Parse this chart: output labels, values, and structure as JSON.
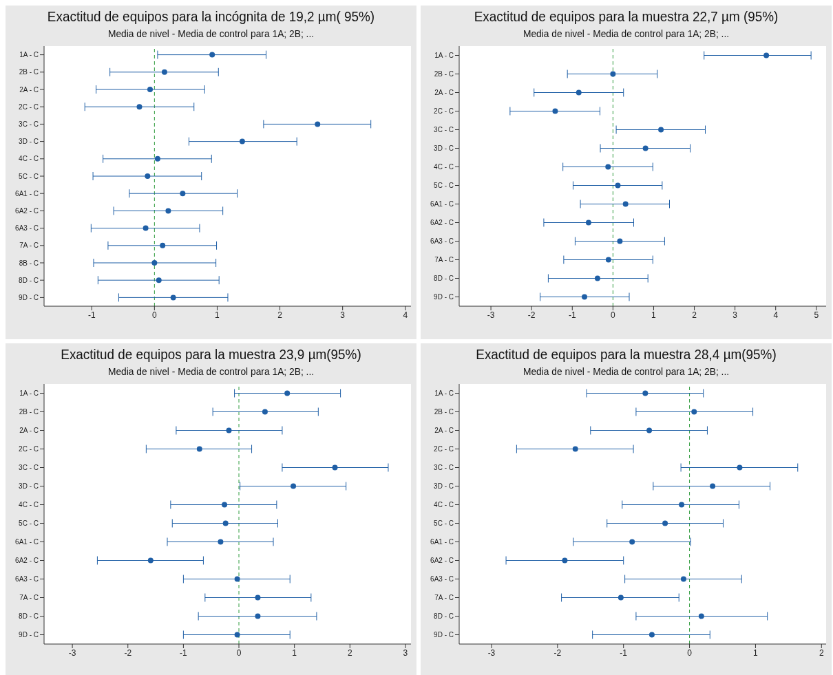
{
  "chart_data": [
    {
      "type": "scatter",
      "orientation": "horizontal",
      "title": "Exactitud de equipos  para la incógnita de 19,2 µm( 95%)",
      "subtitle": "Media de nivel - Media de control para 1A; 2B; ...",
      "marker": "circle",
      "categories": [
        "1A - C",
        "2B - C",
        "2A - C",
        "2C - C",
        "3C - C",
        "3D - C",
        "4C - C",
        "5C - C",
        "6A1 - C",
        "6A2 - C",
        "6A3 - C",
        "7A - C",
        "8B - C",
        "8D - C",
        "9D - C"
      ],
      "series": [
        {
          "color": "#1f5fa6",
          "values": [
            0.92,
            0.16,
            -0.07,
            -0.24,
            2.6,
            1.4,
            0.05,
            -0.11,
            0.45,
            0.22,
            -0.14,
            0.13,
            0.0,
            0.07,
            0.3
          ],
          "errors": [
            [
              0.05,
              1.78
            ],
            [
              -0.71,
              1.02
            ],
            [
              -0.93,
              0.8
            ],
            [
              -1.11,
              0.63
            ],
            [
              1.74,
              3.45
            ],
            [
              0.55,
              2.27
            ],
            [
              -0.82,
              0.91
            ],
            [
              -0.98,
              0.75
            ],
            [
              -0.4,
              1.32
            ],
            [
              -0.65,
              1.09
            ],
            [
              -1.01,
              0.72
            ],
            [
              -0.74,
              0.99
            ],
            [
              -0.97,
              0.98
            ],
            [
              -0.9,
              1.03
            ],
            [
              -0.57,
              1.17
            ]
          ]
        }
      ],
      "xlim": [
        -1.76,
        4.09
      ],
      "xticks": [
        -1,
        0,
        1,
        2,
        3,
        4
      ],
      "ref_lines": [
        {
          "axis": "x",
          "value": 0,
          "color": "#2e9b3c",
          "line_style": "dashed"
        }
      ]
    },
    {
      "type": "scatter",
      "orientation": "horizontal",
      "title": "Exactitud de equipos para la muestra 22,7 µm (95%)",
      "subtitle": "Media de nivel - Media de control para 1A; 2B; ...",
      "marker": "circle",
      "categories": [
        "1A - C",
        "2B - C",
        "2A - C",
        "2C - C",
        "3C - C",
        "3D - C",
        "4C - C",
        "5C - C",
        "6A1 - C",
        "6A2 - C",
        "6A3 - C",
        "7A - C",
        "8D - C",
        "9D - C"
      ],
      "series": [
        {
          "color": "#1f5fa6",
          "values": [
            3.77,
            0.0,
            -0.84,
            -1.42,
            1.18,
            0.8,
            -0.12,
            0.12,
            0.31,
            -0.6,
            0.17,
            -0.11,
            -0.38,
            -0.7
          ],
          "errors": [
            [
              2.24,
              4.87
            ],
            [
              -1.12,
              1.09
            ],
            [
              -1.94,
              0.26
            ],
            [
              -2.53,
              -0.32
            ],
            [
              0.08,
              2.27
            ],
            [
              -0.31,
              1.9
            ],
            [
              -1.23,
              0.98
            ],
            [
              -0.98,
              1.21
            ],
            [
              -0.8,
              1.39
            ],
            [
              -1.7,
              0.51
            ],
            [
              -0.93,
              1.27
            ],
            [
              -1.21,
              0.98
            ],
            [
              -1.59,
              0.86
            ],
            [
              -1.79,
              0.4
            ]
          ]
        }
      ],
      "xlim": [
        -3.78,
        5.24
      ],
      "xticks": [
        -3,
        -2,
        -1,
        0,
        1,
        2,
        3,
        4,
        5
      ],
      "ref_lines": [
        {
          "axis": "x",
          "value": 0,
          "color": "#2e9b3c",
          "line_style": "dashed"
        }
      ]
    },
    {
      "type": "scatter",
      "orientation": "horizontal",
      "title": "Exactitud de equipos para la muestra 23,9 µm(95%)",
      "subtitle": "Media de nivel - Media de control para 1A; 2B; ...",
      "marker": "circle",
      "categories": [
        "1A - C",
        "2B - C",
        "2A - C",
        "2C - C",
        "3C - C",
        "3D - C",
        "4C - C",
        "5C - C",
        "6A1 - C",
        "6A2 - C",
        "6A3 - C",
        "7A - C",
        "8D - C",
        "9D - C"
      ],
      "series": [
        {
          "color": "#1f5fa6",
          "values": [
            0.87,
            0.47,
            -0.18,
            -0.71,
            1.73,
            0.98,
            -0.26,
            -0.24,
            -0.33,
            -1.59,
            -0.03,
            0.34,
            0.34,
            -0.03
          ],
          "errors": [
            [
              -0.08,
              1.83
            ],
            [
              -0.47,
              1.43
            ],
            [
              -1.13,
              0.78
            ],
            [
              -1.67,
              0.23
            ],
            [
              0.78,
              2.69
            ],
            [
              0.02,
              1.93
            ],
            [
              -1.23,
              0.68
            ],
            [
              -1.2,
              0.7
            ],
            [
              -1.29,
              0.62
            ],
            [
              -2.55,
              -0.64
            ],
            [
              -1.0,
              0.92
            ],
            [
              -0.61,
              1.3
            ],
            [
              -0.73,
              1.4
            ],
            [
              -1.0,
              0.92
            ]
          ]
        }
      ],
      "xlim": [
        -3.51,
        3.1
      ],
      "xticks": [
        -3,
        -2,
        -1,
        0,
        1,
        2,
        3
      ],
      "ref_lines": [
        {
          "axis": "x",
          "value": 0,
          "color": "#2e9b3c",
          "line_style": "dashed"
        }
      ]
    },
    {
      "type": "scatter",
      "orientation": "horizontal",
      "title": "Exactitud de equipos para la muestra 28,4 µm(95%)",
      "subtitle": "Media de nivel - Media de control para 1A; 2B; ...",
      "marker": "circle",
      "categories": [
        "1A - C",
        "2B - C",
        "2A - C",
        "2C - C",
        "3C - C",
        "3D - C",
        "4C - C",
        "5C - C",
        "6A1 - C",
        "6A2 - C",
        "6A3 - C",
        "7A - C",
        "8D - C",
        "9D - C"
      ],
      "series": [
        {
          "color": "#1f5fa6",
          "values": [
            -0.67,
            0.07,
            -0.61,
            -1.73,
            0.76,
            0.35,
            -0.12,
            -0.37,
            -0.87,
            -1.89,
            -0.09,
            -1.04,
            0.18,
            -0.57
          ],
          "errors": [
            [
              -1.56,
              0.21
            ],
            [
              -0.81,
              0.96
            ],
            [
              -1.5,
              0.27
            ],
            [
              -2.62,
              -0.85
            ],
            [
              -0.13,
              1.64
            ],
            [
              -0.55,
              1.22
            ],
            [
              -1.02,
              0.75
            ],
            [
              -1.25,
              0.51
            ],
            [
              -1.76,
              0.02
            ],
            [
              -2.78,
              -1.0
            ],
            [
              -0.98,
              0.79
            ],
            [
              -1.94,
              -0.16
            ],
            [
              -0.81,
              1.18
            ],
            [
              -1.47,
              0.31
            ]
          ]
        }
      ],
      "xlim": [
        -3.49,
        2.07
      ],
      "xticks": [
        -3,
        -2,
        -1,
        0,
        1,
        2
      ],
      "ref_lines": [
        {
          "axis": "x",
          "value": 0,
          "color": "#2e9b3c",
          "line_style": "dashed"
        }
      ]
    }
  ]
}
